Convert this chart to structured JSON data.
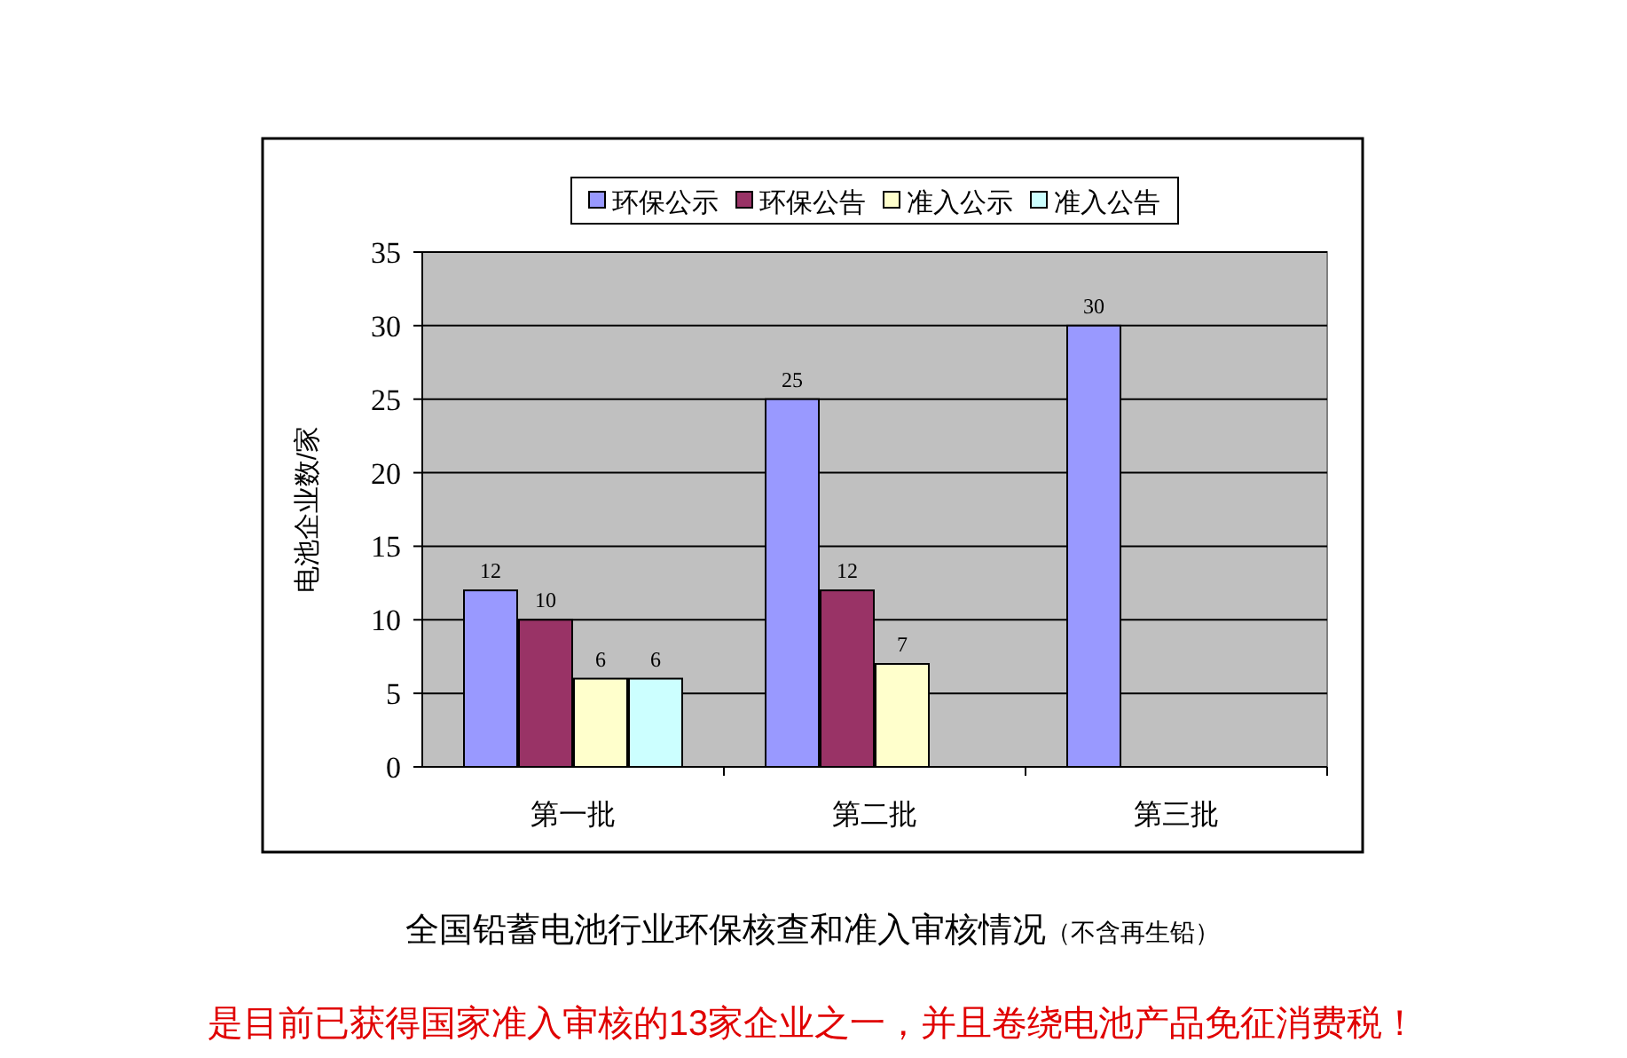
{
  "chart_data": {
    "type": "bar",
    "title": "全国铅蓄电池行业环保核查和准入审核情况",
    "subtitle": "（不含再生铅）",
    "annotations": [
      "是目前已获得国家准入审核的13家企业之一，并且卷绕电池产品免征消费税！"
    ],
    "ylabel": "电池企业数/家",
    "categories": [
      "第一批",
      "第二批",
      "第三批"
    ],
    "series": [
      {
        "name": "环保公示",
        "color": "#9999ff",
        "values": [
          12,
          25,
          30
        ]
      },
      {
        "name": "环保公告",
        "color": "#993366",
        "values": [
          10,
          12,
          null
        ]
      },
      {
        "name": "准入公示",
        "color": "#ffffcc",
        "values": [
          6,
          7,
          null
        ]
      },
      {
        "name": "准入公告",
        "color": "#ccffff",
        "values": [
          6,
          null,
          null
        ]
      }
    ],
    "ylim": [
      0,
      35
    ],
    "yticks": [
      0,
      5,
      10,
      15,
      20,
      25,
      30,
      35
    ],
    "grid": "y",
    "legend": "top",
    "data_labels": true
  }
}
